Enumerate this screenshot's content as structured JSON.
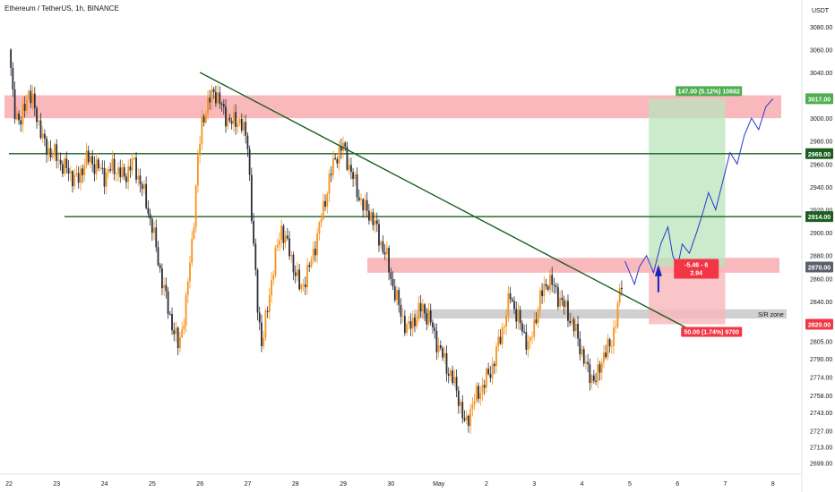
{
  "header": {
    "title": "Ethereum / TetherUS, 1h, BINANCE"
  },
  "axis": {
    "currency": "USDT"
  },
  "colors": {
    "bull": "#f7931a",
    "bear": "#2a2e39",
    "support": "#1b5e20",
    "resistance_zone": "#f7a1a6",
    "sr_zone": "#c8c8c8",
    "target_box": "#b9e4bb",
    "stop_box": "#f7b7ba",
    "projection": "#2739d1",
    "arrow": "#1525b8"
  },
  "chart_data": {
    "type": "candlestick",
    "title": "Ethereum / TetherUS, 1h, BINANCE",
    "ylim": [
      2693,
      3097
    ],
    "y_ticks": [
      3080.0,
      3060.0,
      3040.0,
      3020.0,
      3000.0,
      2980.0,
      2960.0,
      2940.0,
      2920.0,
      2900.0,
      2880.0,
      2860.0,
      2840.0,
      2820.0,
      2805.0,
      2790.0,
      2774.0,
      2758.0,
      2743.0,
      2727.0,
      2713.0,
      2699.0
    ],
    "x_ticks": [
      "22",
      "23",
      "24",
      "25",
      "26",
      "27",
      "28",
      "29",
      "30",
      "May",
      "2",
      "3",
      "4",
      "5",
      "6",
      "7",
      "8"
    ],
    "price_path": [
      [
        0,
        3060
      ],
      [
        0.1,
        3010
      ],
      [
        0.25,
        2995
      ],
      [
        0.4,
        3025
      ],
      [
        0.6,
        3000
      ],
      [
        0.75,
        2975
      ],
      [
        0.95,
        2968
      ],
      [
        1.2,
        2955
      ],
      [
        1.45,
        2945
      ],
      [
        1.6,
        2965
      ],
      [
        1.8,
        2960
      ],
      [
        2.0,
        2950
      ],
      [
        2.2,
        2958
      ],
      [
        2.4,
        2948
      ],
      [
        2.6,
        2962
      ],
      [
        2.8,
        2938
      ],
      [
        3.0,
        2905
      ],
      [
        3.15,
        2870
      ],
      [
        3.35,
        2830
      ],
      [
        3.55,
        2800
      ],
      [
        3.7,
        2835
      ],
      [
        3.85,
        2900
      ],
      [
        3.95,
        2960
      ],
      [
        4.05,
        3000
      ],
      [
        4.15,
        3010
      ],
      [
        4.3,
        3025
      ],
      [
        4.5,
        3005
      ],
      [
        4.65,
        2995
      ],
      [
        4.8,
        3000
      ],
      [
        5.0,
        2980
      ],
      [
        5.1,
        2900
      ],
      [
        5.2,
        2840
      ],
      [
        5.3,
        2800
      ],
      [
        5.5,
        2860
      ],
      [
        5.7,
        2905
      ],
      [
        5.9,
        2880
      ],
      [
        6.1,
        2850
      ],
      [
        6.3,
        2870
      ],
      [
        6.5,
        2905
      ],
      [
        6.7,
        2945
      ],
      [
        6.85,
        2968
      ],
      [
        7.0,
        2975
      ],
      [
        7.15,
        2955
      ],
      [
        7.3,
        2935
      ],
      [
        7.45,
        2920
      ],
      [
        7.6,
        2915
      ],
      [
        7.75,
        2895
      ],
      [
        7.9,
        2880
      ],
      [
        8.0,
        2860
      ],
      [
        8.2,
        2830
      ],
      [
        8.35,
        2815
      ],
      [
        8.5,
        2825
      ],
      [
        8.65,
        2835
      ],
      [
        8.8,
        2825
      ],
      [
        9.0,
        2800
      ],
      [
        9.2,
        2780
      ],
      [
        9.4,
        2760
      ],
      [
        9.55,
        2730
      ],
      [
        9.7,
        2750
      ],
      [
        9.9,
        2765
      ],
      [
        10.1,
        2780
      ],
      [
        10.3,
        2810
      ],
      [
        10.5,
        2845
      ],
      [
        10.7,
        2820
      ],
      [
        10.9,
        2800
      ],
      [
        11.1,
        2840
      ],
      [
        11.3,
        2860
      ],
      [
        11.5,
        2845
      ],
      [
        11.7,
        2830
      ],
      [
        11.9,
        2810
      ],
      [
        12.1,
        2780
      ],
      [
        12.3,
        2770
      ],
      [
        12.45,
        2795
      ],
      [
        12.6,
        2800
      ],
      [
        12.75,
        2835
      ],
      [
        12.85,
        2860
      ]
    ],
    "horizontal_lines": [
      {
        "price": 2969.0,
        "label": "2969.00"
      },
      {
        "price": 2914.0,
        "label": "2914.00"
      }
    ],
    "zones": [
      {
        "name": "resistance-top",
        "from": 3000,
        "to": 3020
      },
      {
        "name": "resistance-mid",
        "from": 2865,
        "to": 2878
      },
      {
        "name": "sr-zone",
        "from": 2825,
        "to": 2833,
        "label": "S/R zone"
      }
    ],
    "trendline": {
      "from": [
        4.0,
        3040
      ],
      "to": [
        14.5,
        2810
      ]
    },
    "position": {
      "entry": 2870.0,
      "target": 3017.0,
      "stop": 2820.0,
      "profit_label": "147.00 (5.12%) 10882",
      "loss_label": "50.00 (1.74%) 9700",
      "ratio_label_1": "-5.46 - 6",
      "ratio_label_2": "2.94",
      "start_day": 13.4,
      "end_day": 15.0
    },
    "projection_path": [
      [
        12.9,
        2875
      ],
      [
        13.0,
        2865
      ],
      [
        13.1,
        2855
      ],
      [
        13.2,
        2870
      ],
      [
        13.35,
        2880
      ],
      [
        13.5,
        2865
      ],
      [
        13.65,
        2890
      ],
      [
        13.8,
        2905
      ],
      [
        13.9,
        2880
      ],
      [
        14.0,
        2870
      ],
      [
        14.1,
        2890
      ],
      [
        14.25,
        2882
      ],
      [
        14.4,
        2900
      ],
      [
        14.55,
        2920
      ],
      [
        14.65,
        2935
      ],
      [
        14.8,
        2920
      ],
      [
        14.95,
        2945
      ],
      [
        15.1,
        2970
      ],
      [
        15.25,
        2960
      ],
      [
        15.4,
        2985
      ],
      [
        15.55,
        3000
      ],
      [
        15.7,
        2990
      ],
      [
        15.85,
        3010
      ],
      [
        16.0,
        3017
      ]
    ],
    "price_tags": [
      {
        "price": 3017.0,
        "label": "3017.00",
        "style": "green"
      },
      {
        "price": 2969.0,
        "label": "2969.00",
        "style": "dark-green"
      },
      {
        "price": 2914.0,
        "label": "2914.00",
        "style": "dark-green"
      },
      {
        "price": 2870.0,
        "label": "2870.00",
        "style": "gray"
      },
      {
        "price": 2820.0,
        "label": "2820.00",
        "style": "red"
      }
    ]
  }
}
